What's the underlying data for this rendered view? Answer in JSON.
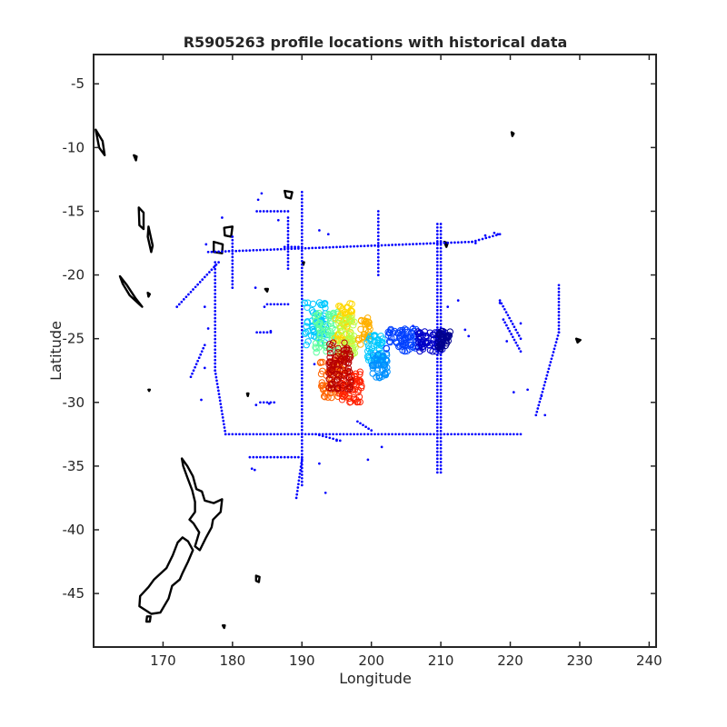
{
  "chart_data": {
    "type": "scatter",
    "title": "R5905263 profile locations with historical data",
    "xlabel": "Longitude",
    "ylabel": "Latitude",
    "xlim": [
      160,
      241
    ],
    "ylim": [
      -49.2,
      -2.7
    ],
    "xticks": [
      170,
      180,
      190,
      200,
      210,
      220,
      230,
      240
    ],
    "yticks": [
      -45,
      -40,
      -35,
      -30,
      -25,
      -20,
      -15,
      -10,
      -5
    ],
    "grid": false,
    "historical_color": "#0000ff",
    "coast_color": "#000000",
    "colormap": "jet",
    "historical_tracks": [
      {
        "x": [
          176.5,
          214.5
        ],
        "y": [
          -18.2,
          -17.4
        ]
      },
      {
        "x": [
          214.5,
          218.5
        ],
        "y": [
          -17.4,
          -16.8
        ]
      },
      {
        "x": [
          179,
          221.5
        ],
        "y": [
          -32.5,
          -32.5
        ]
      },
      {
        "x": [
          190,
          190
        ],
        "y": [
          -13.5,
          -36.5
        ]
      },
      {
        "x": [
          177.5,
          177.5
        ],
        "y": [
          -19,
          -27.5
        ]
      },
      {
        "x": [
          177.5,
          179
        ],
        "y": [
          -27.5,
          -32.5
        ]
      },
      {
        "x": [
          209.5,
          209.5
        ],
        "y": [
          -16,
          -35.5
        ]
      },
      {
        "x": [
          210,
          210
        ],
        "y": [
          -16,
          -35.5
        ]
      },
      {
        "x": [
          182.5,
          190
        ],
        "y": [
          -34.3,
          -34.3
        ]
      },
      {
        "x": [
          201,
          201
        ],
        "y": [
          -15,
          -20
        ]
      },
      {
        "x": [
          188,
          188
        ],
        "y": [
          -15.5,
          -19.5
        ]
      },
      {
        "x": [
          183.5,
          188
        ],
        "y": [
          -15,
          -15
        ]
      },
      {
        "x": [
          180,
          180
        ],
        "y": [
          -17,
          -21
        ]
      },
      {
        "x": [
          227,
          227
        ],
        "y": [
          -20.8,
          -24.5
        ]
      },
      {
        "x": [
          227,
          223.7
        ],
        "y": [
          -24.5,
          -31
        ]
      },
      {
        "x": [
          178,
          172
        ],
        "y": [
          -19,
          -22.5
        ]
      },
      {
        "x": [
          190,
          189.2
        ],
        "y": [
          -34.5,
          -37.5
        ]
      },
      {
        "x": [
          185,
          188
        ],
        "y": [
          -22.3,
          -22.3
        ]
      },
      {
        "x": [
          183.5,
          185.5
        ],
        "y": [
          -24.5,
          -24.5
        ]
      },
      {
        "x": [
          184,
          186
        ],
        "y": [
          -30,
          -30
        ]
      },
      {
        "x": [
          190,
          187.5
        ],
        "y": [
          -17.8,
          -17.8
        ]
      },
      {
        "x": [
          219,
          221.5
        ],
        "y": [
          -23.5,
          -26
        ]
      },
      {
        "x": [
          218.5,
          221.5
        ],
        "y": [
          -22,
          -25
        ]
      },
      {
        "x": [
          176,
          174
        ],
        "y": [
          -25.5,
          -28
        ]
      },
      {
        "x": [
          192,
          195.5
        ],
        "y": [
          -32.5,
          -33
        ]
      },
      {
        "x": [
          198,
          200
        ],
        "y": [
          -31.5,
          -32.2
        ]
      }
    ],
    "historical_points": [
      [
        178.5,
        -15.5
      ],
      [
        183.7,
        -14.1
      ],
      [
        184.2,
        -13.6
      ],
      [
        186.6,
        -15.7
      ],
      [
        192.5,
        -16.5
      ],
      [
        193.8,
        -16.8
      ],
      [
        218.5,
        -22.2
      ],
      [
        221.5,
        -23.8
      ],
      [
        214,
        -24.8
      ],
      [
        211,
        -22.5
      ],
      [
        212.5,
        -22
      ],
      [
        213.5,
        -24.3
      ],
      [
        219.5,
        -25.2
      ],
      [
        222.5,
        -29
      ],
      [
        220.5,
        -29.2
      ],
      [
        225,
        -31
      ],
      [
        224.5,
        -29.5
      ],
      [
        191.8,
        -27
      ],
      [
        193.4,
        -37.1
      ],
      [
        192.5,
        -34.8
      ],
      [
        195,
        -33
      ],
      [
        182.8,
        -35.2
      ],
      [
        183.2,
        -35.3
      ],
      [
        183.4,
        -30.2
      ],
      [
        185.3,
        -30.1
      ],
      [
        184.6,
        -22.5
      ],
      [
        185.5,
        -24.4
      ],
      [
        183.3,
        -21
      ],
      [
        176.2,
        -17.6
      ],
      [
        176,
        -22.5
      ],
      [
        176.5,
        -24.2
      ],
      [
        176,
        -27.3
      ],
      [
        175.5,
        -29.8
      ],
      [
        199.5,
        -34.5
      ],
      [
        201.5,
        -33.5
      ],
      [
        206,
        -24
      ],
      [
        204.5,
        -24.3
      ],
      [
        215,
        -17.5
      ],
      [
        216.4,
        -16.9
      ],
      [
        217.7,
        -16.7
      ],
      [
        218.2,
        -16.8
      ]
    ],
    "profile_clusters": [
      {
        "lon": 192,
        "lat": -23.7,
        "w": 3.2,
        "h": 3.6,
        "color": "#00c8ff",
        "n": 60
      },
      {
        "lon": 193.5,
        "lat": -24.5,
        "w": 3.4,
        "h": 3.2,
        "color": "#5cff9f",
        "n": 60
      },
      {
        "lon": 196,
        "lat": -23.8,
        "w": 2.6,
        "h": 3.2,
        "color": "#ffd800",
        "n": 60
      },
      {
        "lon": 196.5,
        "lat": -24.8,
        "w": 2.4,
        "h": 3,
        "color": "#b5ff4a",
        "n": 40
      },
      {
        "lon": 199,
        "lat": -24.4,
        "w": 1.8,
        "h": 2.2,
        "color": "#ffb000",
        "n": 30
      },
      {
        "lon": 194.5,
        "lat": -28,
        "w": 3.8,
        "h": 3.4,
        "color": "#ff6400",
        "n": 70
      },
      {
        "lon": 197,
        "lat": -28.8,
        "w": 3.2,
        "h": 2.4,
        "color": "#ff2000",
        "n": 60
      },
      {
        "lon": 195.5,
        "lat": -27.1,
        "w": 3.2,
        "h": 3.8,
        "color": "#b80000",
        "n": 90
      },
      {
        "lon": 200.6,
        "lat": -25.8,
        "w": 2.4,
        "h": 2.2,
        "color": "#00c8ff",
        "n": 50
      },
      {
        "lon": 201.2,
        "lat": -27.1,
        "w": 2.2,
        "h": 2,
        "color": "#0090ff",
        "n": 50
      },
      {
        "lon": 204.5,
        "lat": -25.1,
        "w": 4.8,
        "h": 1.8,
        "color": "#0040ff",
        "n": 70
      },
      {
        "lon": 208.5,
        "lat": -25.2,
        "w": 3.6,
        "h": 1.6,
        "color": "#0000c8",
        "n": 60
      },
      {
        "lon": 210.5,
        "lat": -25.1,
        "w": 1.8,
        "h": 1.4,
        "color": "#00008f",
        "n": 40
      }
    ],
    "coastlines": [
      {
        "name": "New Zealand North Island",
        "closed": true,
        "pts": [
          [
            172.7,
            -34.4
          ],
          [
            173.5,
            -35
          ],
          [
            174.3,
            -35.8
          ],
          [
            174.8,
            -36.8
          ],
          [
            175.6,
            -37
          ],
          [
            176,
            -37.7
          ],
          [
            177.3,
            -37.9
          ],
          [
            178.5,
            -37.6
          ],
          [
            178.3,
            -38.6
          ],
          [
            177.2,
            -39.2
          ],
          [
            177,
            -39.8
          ],
          [
            176.2,
            -40.6
          ],
          [
            175.3,
            -41.6
          ],
          [
            174.6,
            -41.3
          ],
          [
            175.2,
            -40.2
          ],
          [
            174.4,
            -39.5
          ],
          [
            173.8,
            -39.2
          ],
          [
            174.6,
            -38.6
          ],
          [
            174.6,
            -37.8
          ],
          [
            174.2,
            -36.9
          ],
          [
            173.5,
            -35.9
          ],
          [
            172.9,
            -35
          ]
        ]
      },
      {
        "name": "New Zealand South Island",
        "closed": true,
        "pts": [
          [
            172.8,
            -40.6
          ],
          [
            173.6,
            -40.9
          ],
          [
            174.3,
            -41.6
          ],
          [
            173.6,
            -42.5
          ],
          [
            172.8,
            -43.4
          ],
          [
            172.4,
            -43.9
          ],
          [
            171.3,
            -44.4
          ],
          [
            170.8,
            -45.4
          ],
          [
            169.6,
            -46.5
          ],
          [
            168.3,
            -46.6
          ],
          [
            166.6,
            -46
          ],
          [
            166.7,
            -45.2
          ],
          [
            167.9,
            -44.5
          ],
          [
            168.7,
            -43.9
          ],
          [
            170.5,
            -43
          ],
          [
            171.4,
            -42
          ],
          [
            172.1,
            -41
          ]
        ]
      },
      {
        "name": "Stewart Island",
        "closed": true,
        "pts": [
          [
            167.7,
            -46.8
          ],
          [
            168.2,
            -46.8
          ],
          [
            168.1,
            -47.2
          ],
          [
            167.6,
            -47.2
          ]
        ]
      },
      {
        "name": "Chatham Islands",
        "closed": true,
        "pts": [
          [
            183.4,
            -43.6
          ],
          [
            183.9,
            -43.7
          ],
          [
            183.8,
            -44.1
          ],
          [
            183.4,
            -44
          ]
        ]
      },
      {
        "name": "New Caledonia",
        "closed": true,
        "pts": [
          [
            163.8,
            -20.1
          ],
          [
            164.8,
            -20.8
          ],
          [
            166,
            -21.8
          ],
          [
            167,
            -22.5
          ],
          [
            166.6,
            -22.3
          ],
          [
            165.2,
            -21.6
          ],
          [
            164.2,
            -20.7
          ]
        ]
      },
      {
        "name": "Vanuatu north",
        "closed": true,
        "pts": [
          [
            166.5,
            -14.7
          ],
          [
            167.2,
            -15.1
          ],
          [
            167.2,
            -16.4
          ],
          [
            166.6,
            -16.1
          ]
        ]
      },
      {
        "name": "Vanuatu south",
        "closed": true,
        "pts": [
          [
            167.9,
            -16.2
          ],
          [
            168.5,
            -17.7
          ],
          [
            168.3,
            -18.2
          ],
          [
            167.8,
            -17
          ]
        ]
      },
      {
        "name": "Solomon Is",
        "closed": true,
        "pts": [
          [
            160.3,
            -8.6
          ],
          [
            161.3,
            -9.5
          ],
          [
            161.6,
            -10.6
          ],
          [
            160.8,
            -10
          ]
        ]
      },
      {
        "name": "Santa Cruz",
        "closed": true,
        "pts": [
          [
            165.8,
            -10.6
          ],
          [
            166.2,
            -10.7
          ],
          [
            166.1,
            -11
          ]
        ]
      },
      {
        "name": "Fiji Viti Levu",
        "closed": true,
        "pts": [
          [
            177.3,
            -17.4
          ],
          [
            178.6,
            -17.6
          ],
          [
            178.5,
            -18.3
          ],
          [
            177.3,
            -18.2
          ]
        ]
      },
      {
        "name": "Fiji Vanua Levu",
        "closed": true,
        "pts": [
          [
            178.8,
            -16.3
          ],
          [
            180,
            -16.2
          ],
          [
            179.8,
            -17
          ],
          [
            178.9,
            -16.9
          ]
        ]
      },
      {
        "name": "Samoa",
        "closed": true,
        "pts": [
          [
            187.5,
            -13.4
          ],
          [
            188.6,
            -13.5
          ],
          [
            188.4,
            -14
          ],
          [
            187.7,
            -13.9
          ]
        ]
      },
      {
        "name": "Tonga",
        "closed": true,
        "pts": [
          [
            184.7,
            -21.1
          ],
          [
            185.1,
            -21.1
          ],
          [
            185,
            -21.3
          ]
        ]
      },
      {
        "name": "Marquesas",
        "closed": true,
        "pts": [
          [
            220.2,
            -8.8
          ],
          [
            220.5,
            -8.9
          ],
          [
            220.3,
            -9.1
          ]
        ]
      },
      {
        "name": "Society Islands",
        "closed": true,
        "pts": [
          [
            210.5,
            -17.4
          ],
          [
            211,
            -17.5
          ],
          [
            210.8,
            -17.8
          ]
        ]
      },
      {
        "name": "Austral",
        "closed": true,
        "pts": [
          [
            229.5,
            -25
          ],
          [
            230.1,
            -25.1
          ],
          [
            229.7,
            -25.3
          ]
        ]
      },
      {
        "name": "Kermadec",
        "closed": true,
        "pts": [
          [
            182.1,
            -29.3
          ],
          [
            182.3,
            -29.3
          ],
          [
            182.2,
            -29.5
          ]
        ]
      },
      {
        "name": "Norfolk",
        "closed": true,
        "pts": [
          [
            167.9,
            -29
          ],
          [
            168.1,
            -29
          ],
          [
            168,
            -29.1
          ]
        ]
      },
      {
        "name": "Antipodes",
        "closed": true,
        "pts": [
          [
            178.6,
            -47.5
          ],
          [
            178.9,
            -47.5
          ],
          [
            178.8,
            -47.7
          ]
        ]
      },
      {
        "name": "Loyalty",
        "closed": true,
        "pts": [
          [
            167.8,
            -21.4
          ],
          [
            168.1,
            -21.5
          ],
          [
            167.9,
            -21.7
          ]
        ]
      },
      {
        "name": "Niue",
        "closed": true,
        "pts": [
          [
            190.1,
            -19
          ],
          [
            190.3,
            -19
          ],
          [
            190.2,
            -19.2
          ]
        ]
      }
    ]
  }
}
